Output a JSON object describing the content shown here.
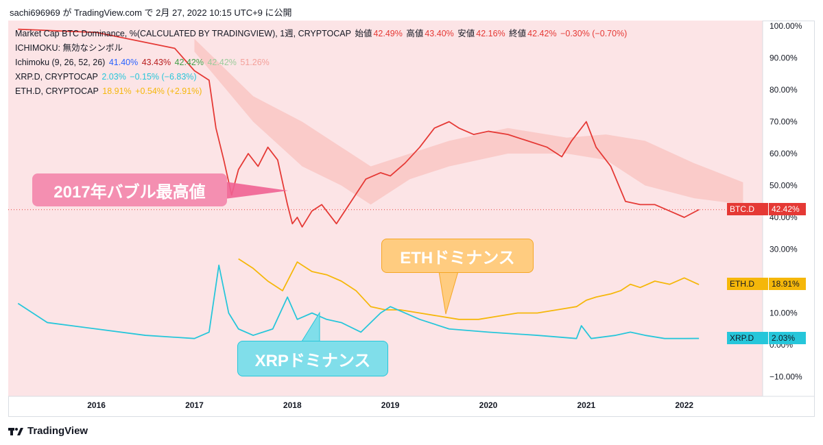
{
  "header": {
    "text": "sachi696969 が TradingView.com で 2月 27, 2022 10:15 UTC+9 に公開"
  },
  "legend": {
    "line1": {
      "title": "Market Cap BTC Dominance, %(CALCULATED BY TRADINGVIEW), 1週, CRYPTOCAP",
      "open_label": "始値",
      "open": "42.49%",
      "high_label": "高値",
      "high": "43.40%",
      "low_label": "安値",
      "low": "42.16%",
      "close_label": "終値",
      "close": "42.42%",
      "change": "−0.30% (−0.70%)"
    },
    "line2": {
      "text": "ICHIMOKU: 無効なシンボル"
    },
    "line3": {
      "title": "Ichimoku (9, 26, 52, 26)",
      "v1": "41.40%",
      "v2": "43.43%",
      "v3": "42.42%",
      "v4": "42.42%",
      "v5": "51.26%"
    },
    "line4": {
      "title": "XRP.D, CRYPTOCAP",
      "v1": "2.03%",
      "v2": "−0.15% (−6.83%)"
    },
    "line5": {
      "title": "ETH.D, CRYPTOCAP",
      "v1": "18.91%",
      "v2": "+0.54% (+2.91%)"
    }
  },
  "callouts": {
    "bubble": "2017年バブル最高値",
    "eth": "ETHドミナンス",
    "xrp": "XRPドミナンス"
  },
  "price_tags": {
    "btc": {
      "symbol": "BTC.D",
      "value": "42.42%"
    },
    "eth": {
      "symbol": "ETH.D",
      "value": "18.91%"
    },
    "xrp": {
      "symbol": "XRP.D",
      "value": "2.03%"
    }
  },
  "footer": {
    "brand": "TradingView"
  },
  "colors": {
    "background": "#fce4e6",
    "btc": "#e53935",
    "eth": "#f5b70a",
    "xrp": "#26c6da",
    "tenkan": "#2962ff",
    "kijun": "#b71c1c",
    "chikou": "#43a047",
    "cloud_bear": "#f7b6b0",
    "cloud_bull": "#c8d9c0"
  },
  "chart_data": {
    "type": "line",
    "title": "Market Cap BTC Dominance, %(CALCULATED BY TRADINGVIEW), 1週, CRYPTOCAP",
    "x_ticks": [
      "2016",
      "2017",
      "2018",
      "2019",
      "2020",
      "2021",
      "2022"
    ],
    "y_ticks": [
      "100.00%",
      "90.00%",
      "80.00%",
      "70.00%",
      "60.00%",
      "50.00%",
      "40.00%",
      "30.00%",
      "20.00%",
      "10.00%",
      "0.00%",
      "−10.00%"
    ],
    "ylim": [
      -12,
      100
    ],
    "grid": false,
    "series": [
      {
        "name": "BTC.D",
        "x": [
          2015.2,
          2016.0,
          2016.8,
          2017.0,
          2017.15,
          2017.22,
          2017.3,
          2017.38,
          2017.45,
          2017.55,
          2017.65,
          2017.75,
          2017.85,
          2017.95,
          2018.0,
          2018.05,
          2018.1,
          2018.2,
          2018.3,
          2018.45,
          2018.6,
          2018.75,
          2018.9,
          2019.0,
          2019.15,
          2019.3,
          2019.45,
          2019.6,
          2019.7,
          2019.85,
          2020.0,
          2020.2,
          2020.4,
          2020.6,
          2020.75,
          2020.85,
          2021.0,
          2021.1,
          2021.25,
          2021.4,
          2021.55,
          2021.7,
          2021.85,
          2022.0,
          2022.15
        ],
        "values": [
          99,
          98,
          93,
          86,
          83,
          68,
          58,
          47,
          55,
          60,
          56,
          62,
          58,
          44,
          38,
          40,
          37,
          42,
          44,
          38,
          45,
          52,
          54,
          53,
          57,
          62,
          68,
          70,
          68,
          66,
          67,
          66,
          64,
          62,
          59,
          64,
          70,
          62,
          56,
          45,
          44,
          44,
          42,
          40,
          42.42
        ]
      },
      {
        "name": "ETH.D",
        "x": [
          2017.45,
          2017.6,
          2017.75,
          2017.9,
          2018.05,
          2018.2,
          2018.35,
          2018.5,
          2018.65,
          2018.8,
          2018.95,
          2019.1,
          2019.3,
          2019.5,
          2019.7,
          2019.9,
          2020.1,
          2020.3,
          2020.5,
          2020.7,
          2020.9,
          2021.0,
          2021.1,
          2021.25,
          2021.35,
          2021.45,
          2021.55,
          2021.7,
          2021.85,
          2022.0,
          2022.15
        ],
        "values": [
          27,
          24,
          20,
          17,
          26,
          23,
          22,
          20,
          17,
          12,
          11,
          11,
          10,
          9,
          8,
          8,
          9,
          10,
          10,
          11,
          12,
          14,
          15,
          16,
          17,
          19,
          18,
          20,
          19,
          21,
          18.91
        ]
      },
      {
        "name": "XRP.D",
        "x": [
          2015.2,
          2015.5,
          2016.0,
          2016.5,
          2017.0,
          2017.15,
          2017.25,
          2017.35,
          2017.45,
          2017.6,
          2017.8,
          2017.95,
          2018.05,
          2018.2,
          2018.35,
          2018.5,
          2018.7,
          2018.9,
          2019.0,
          2019.3,
          2019.6,
          2020.0,
          2020.5,
          2020.9,
          2020.95,
          2021.05,
          2021.3,
          2021.45,
          2021.6,
          2021.8,
          2022.0,
          2022.15
        ],
        "values": [
          13,
          7,
          5,
          3,
          2,
          4,
          25,
          10,
          5,
          3,
          5,
          15,
          8,
          10,
          8,
          7,
          4,
          10,
          12,
          8,
          5,
          4,
          3,
          2,
          6,
          2,
          3,
          4,
          3,
          2,
          2,
          2.03
        ]
      }
    ],
    "ichimoku": {
      "tenkan": "41.40%",
      "kijun": "43.43%",
      "chikou": "42.42%",
      "span_a": "42.42%",
      "span_b": "51.26%"
    }
  }
}
